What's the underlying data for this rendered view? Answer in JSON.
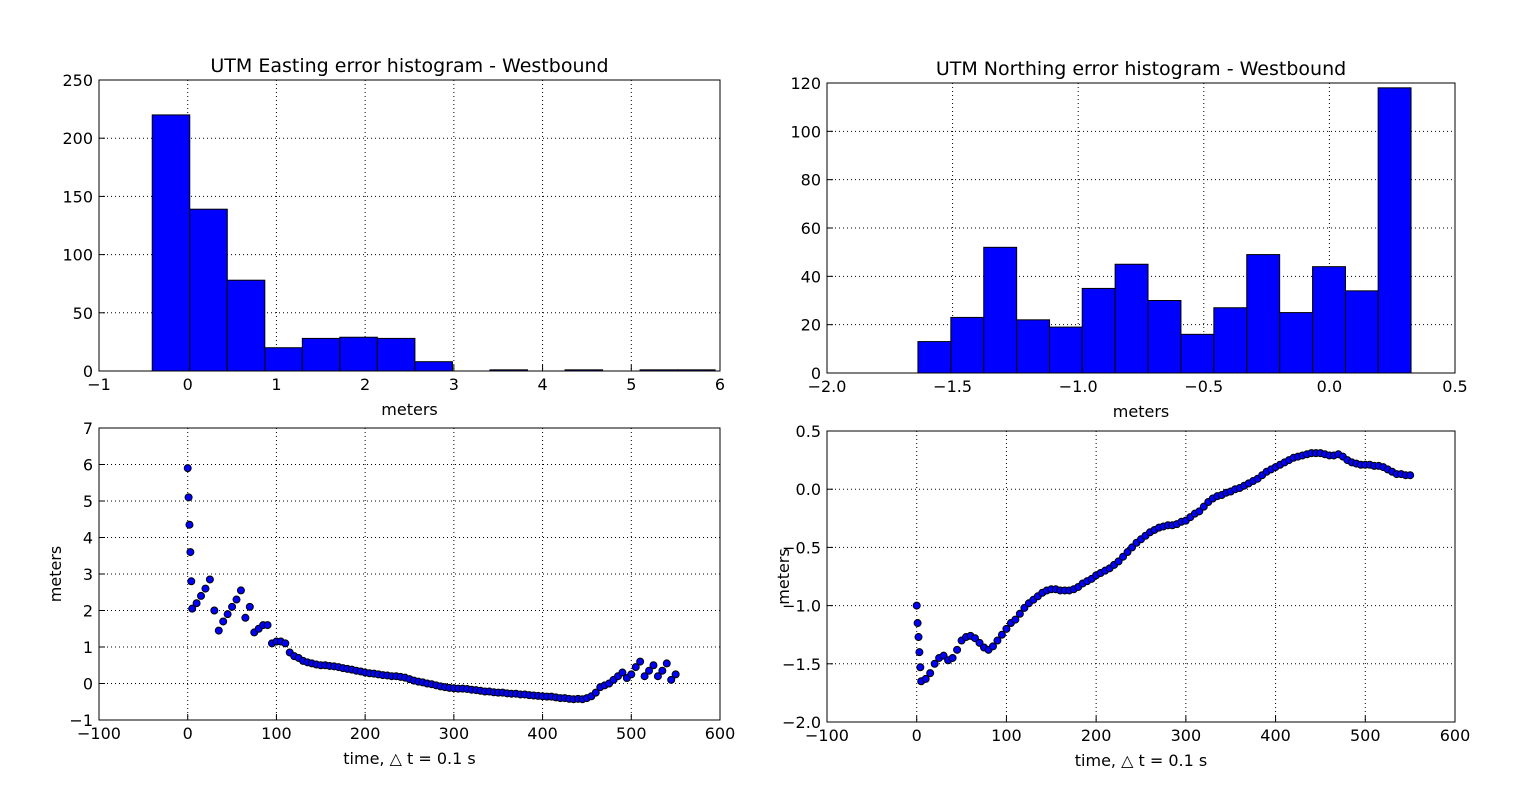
{
  "chart_data": [
    {
      "type": "histogram",
      "title": "UTM Easting error histogram - Westbound",
      "x_label": "meters",
      "color": "#0000ff",
      "grid": true,
      "bins": [
        -0.4,
        0.023,
        0.446,
        0.869,
        1.292,
        1.715,
        2.138,
        2.561,
        2.984,
        3.407,
        3.83,
        4.253,
        4.676,
        5.099,
        5.522,
        5.945
      ],
      "values": [
        220,
        139,
        78,
        20,
        28,
        29,
        28,
        8,
        0,
        1,
        0,
        1,
        0,
        1,
        1
      ],
      "xlim": [
        -1,
        6
      ],
      "xticks": [
        {
          "value": -1,
          "label": "−1"
        },
        0,
        1,
        2,
        3,
        4,
        5,
        6
      ],
      "ylim": [
        0,
        250
      ],
      "yticks": [
        0,
        50,
        100,
        150,
        200,
        250
      ]
    },
    {
      "type": "histogram",
      "title": "UTM Northing error histogram - Westbound",
      "x_label": "meters",
      "color": "#0000ff",
      "grid": true,
      "bins": [
        -1.638,
        -1.507,
        -1.376,
        -1.245,
        -1.114,
        -0.984,
        -0.853,
        -0.722,
        -0.591,
        -0.46,
        -0.329,
        -0.198,
        -0.067,
        0.064,
        0.194,
        0.325
      ],
      "values": [
        13,
        23,
        52,
        22,
        19,
        35,
        45,
        30,
        16,
        27,
        49,
        25,
        44,
        34,
        118
      ],
      "xlim": [
        -2,
        0.5
      ],
      "xticks": [
        {
          "value": -2,
          "label": "−2.0"
        },
        {
          "value": -1.5,
          "label": "−1.5"
        },
        {
          "value": -1,
          "label": "−1.0"
        },
        {
          "value": -0.5,
          "label": "−0.5"
        },
        {
          "value": 0,
          "label": "0.0"
        },
        0.5
      ],
      "ylim": [
        0,
        120
      ],
      "yticks": [
        0,
        20,
        40,
        60,
        80,
        100,
        120
      ]
    },
    {
      "type": "scatter",
      "x_label": "time, △ t = 0.1 s",
      "y_label": "meters",
      "color": "#0000ff",
      "grid": true,
      "x": [
        0,
        1,
        2,
        3,
        4,
        5,
        10,
        15,
        20,
        25,
        30,
        35,
        40,
        45,
        50,
        55,
        60,
        65,
        70,
        75,
        80,
        85,
        90,
        95,
        100,
        105,
        110,
        115,
        120,
        125,
        130,
        135,
        140,
        145,
        150,
        155,
        160,
        165,
        170,
        175,
        180,
        185,
        190,
        195,
        200,
        205,
        210,
        215,
        220,
        225,
        230,
        235,
        240,
        245,
        250,
        255,
        260,
        265,
        270,
        275,
        280,
        285,
        290,
        295,
        300,
        305,
        310,
        315,
        320,
        325,
        330,
        335,
        340,
        345,
        350,
        355,
        360,
        365,
        370,
        375,
        380,
        385,
        390,
        395,
        400,
        405,
        410,
        415,
        420,
        425,
        430,
        435,
        440,
        445,
        450,
        455,
        460,
        465,
        470,
        475,
        480,
        485,
        490,
        495,
        500,
        505,
        510,
        515,
        520,
        525,
        530,
        535,
        540,
        545,
        550
      ],
      "values": [
        5.9,
        5.1,
        4.35,
        3.6,
        2.8,
        2.05,
        2.2,
        2.4,
        2.6,
        2.85,
        2.0,
        1.45,
        1.7,
        1.9,
        2.1,
        2.3,
        2.55,
        1.8,
        2.1,
        1.4,
        1.5,
        1.6,
        1.6,
        1.1,
        1.15,
        1.15,
        1.1,
        0.85,
        0.75,
        0.7,
        0.62,
        0.58,
        0.55,
        0.52,
        0.5,
        0.5,
        0.48,
        0.47,
        0.45,
        0.42,
        0.4,
        0.38,
        0.35,
        0.33,
        0.3,
        0.28,
        0.27,
        0.25,
        0.23,
        0.22,
        0.2,
        0.2,
        0.18,
        0.16,
        0.12,
        0.08,
        0.05,
        0.03,
        0.0,
        -0.02,
        -0.05,
        -0.08,
        -0.1,
        -0.12,
        -0.13,
        -0.14,
        -0.14,
        -0.15,
        -0.17,
        -0.18,
        -0.2,
        -0.22,
        -0.22,
        -0.24,
        -0.25,
        -0.25,
        -0.27,
        -0.28,
        -0.28,
        -0.3,
        -0.3,
        -0.32,
        -0.33,
        -0.34,
        -0.35,
        -0.36,
        -0.36,
        -0.38,
        -0.4,
        -0.4,
        -0.42,
        -0.43,
        -0.42,
        -0.43,
        -0.4,
        -0.35,
        -0.25,
        -0.1,
        -0.05,
        0.0,
        0.1,
        0.2,
        0.3,
        0.15,
        0.25,
        0.45,
        0.6,
        0.2,
        0.35,
        0.5,
        0.2,
        0.35,
        0.55,
        0.1,
        0.25
      ],
      "xlim": [
        -100,
        600
      ],
      "xticks": [
        {
          "value": -100,
          "label": "−100"
        },
        0,
        100,
        200,
        300,
        400,
        500,
        600
      ],
      "ylim": [
        -1,
        7
      ],
      "yticks": [
        {
          "value": -1,
          "label": "−1"
        },
        0,
        1,
        2,
        3,
        4,
        5,
        6,
        7
      ]
    },
    {
      "type": "scatter",
      "x_label": "time, △ t = 0.1 s",
      "y_label": "meters",
      "color": "#0000ff",
      "grid": true,
      "x": [
        0,
        1,
        2,
        3,
        4,
        5,
        10,
        15,
        20,
        25,
        30,
        35,
        40,
        45,
        50,
        55,
        60,
        65,
        70,
        75,
        80,
        85,
        90,
        95,
        100,
        105,
        110,
        115,
        120,
        125,
        130,
        135,
        140,
        145,
        150,
        155,
        160,
        165,
        170,
        175,
        180,
        185,
        190,
        195,
        200,
        205,
        210,
        215,
        220,
        225,
        230,
        235,
        240,
        245,
        250,
        255,
        260,
        265,
        270,
        275,
        280,
        285,
        290,
        295,
        300,
        305,
        310,
        315,
        320,
        325,
        330,
        335,
        340,
        345,
        350,
        355,
        360,
        365,
        370,
        375,
        380,
        385,
        390,
        395,
        400,
        405,
        410,
        415,
        420,
        425,
        430,
        435,
        440,
        445,
        450,
        455,
        460,
        465,
        470,
        475,
        480,
        485,
        490,
        495,
        500,
        505,
        510,
        515,
        520,
        525,
        530,
        535,
        540,
        545,
        550
      ],
      "values": [
        -1.0,
        -1.15,
        -1.27,
        -1.4,
        -1.53,
        -1.65,
        -1.63,
        -1.58,
        -1.5,
        -1.45,
        -1.43,
        -1.47,
        -1.45,
        -1.38,
        -1.3,
        -1.27,
        -1.26,
        -1.28,
        -1.32,
        -1.36,
        -1.38,
        -1.35,
        -1.3,
        -1.25,
        -1.2,
        -1.15,
        -1.12,
        -1.07,
        -1.02,
        -0.98,
        -0.95,
        -0.92,
        -0.89,
        -0.87,
        -0.86,
        -0.86,
        -0.87,
        -0.87,
        -0.87,
        -0.86,
        -0.84,
        -0.81,
        -0.79,
        -0.77,
        -0.74,
        -0.72,
        -0.7,
        -0.68,
        -0.65,
        -0.62,
        -0.58,
        -0.54,
        -0.5,
        -0.46,
        -0.43,
        -0.4,
        -0.37,
        -0.35,
        -0.33,
        -0.32,
        -0.31,
        -0.31,
        -0.3,
        -0.28,
        -0.27,
        -0.24,
        -0.21,
        -0.19,
        -0.15,
        -0.11,
        -0.08,
        -0.06,
        -0.05,
        -0.03,
        -0.02,
        0.0,
        0.01,
        0.03,
        0.05,
        0.07,
        0.09,
        0.12,
        0.15,
        0.17,
        0.19,
        0.21,
        0.23,
        0.25,
        0.27,
        0.28,
        0.29,
        0.3,
        0.31,
        0.31,
        0.31,
        0.3,
        0.29,
        0.29,
        0.3,
        0.28,
        0.25,
        0.23,
        0.22,
        0.21,
        0.21,
        0.21,
        0.2,
        0.2,
        0.19,
        0.17,
        0.15,
        0.13,
        0.13,
        0.12,
        0.12
      ],
      "xlim": [
        -100,
        600
      ],
      "xticks": [
        {
          "value": -100,
          "label": "−100"
        },
        0,
        100,
        200,
        300,
        400,
        500,
        600
      ],
      "ylim": [
        -2,
        0.5
      ],
      "yticks": [
        {
          "value": -2,
          "label": "−2.0"
        },
        {
          "value": -1.5,
          "label": "−1.5"
        },
        {
          "value": -1,
          "label": "−1.0"
        },
        {
          "value": -0.5,
          "label": "−0.5"
        },
        {
          "value": 0,
          "label": "0.0"
        },
        0.5
      ]
    }
  ]
}
